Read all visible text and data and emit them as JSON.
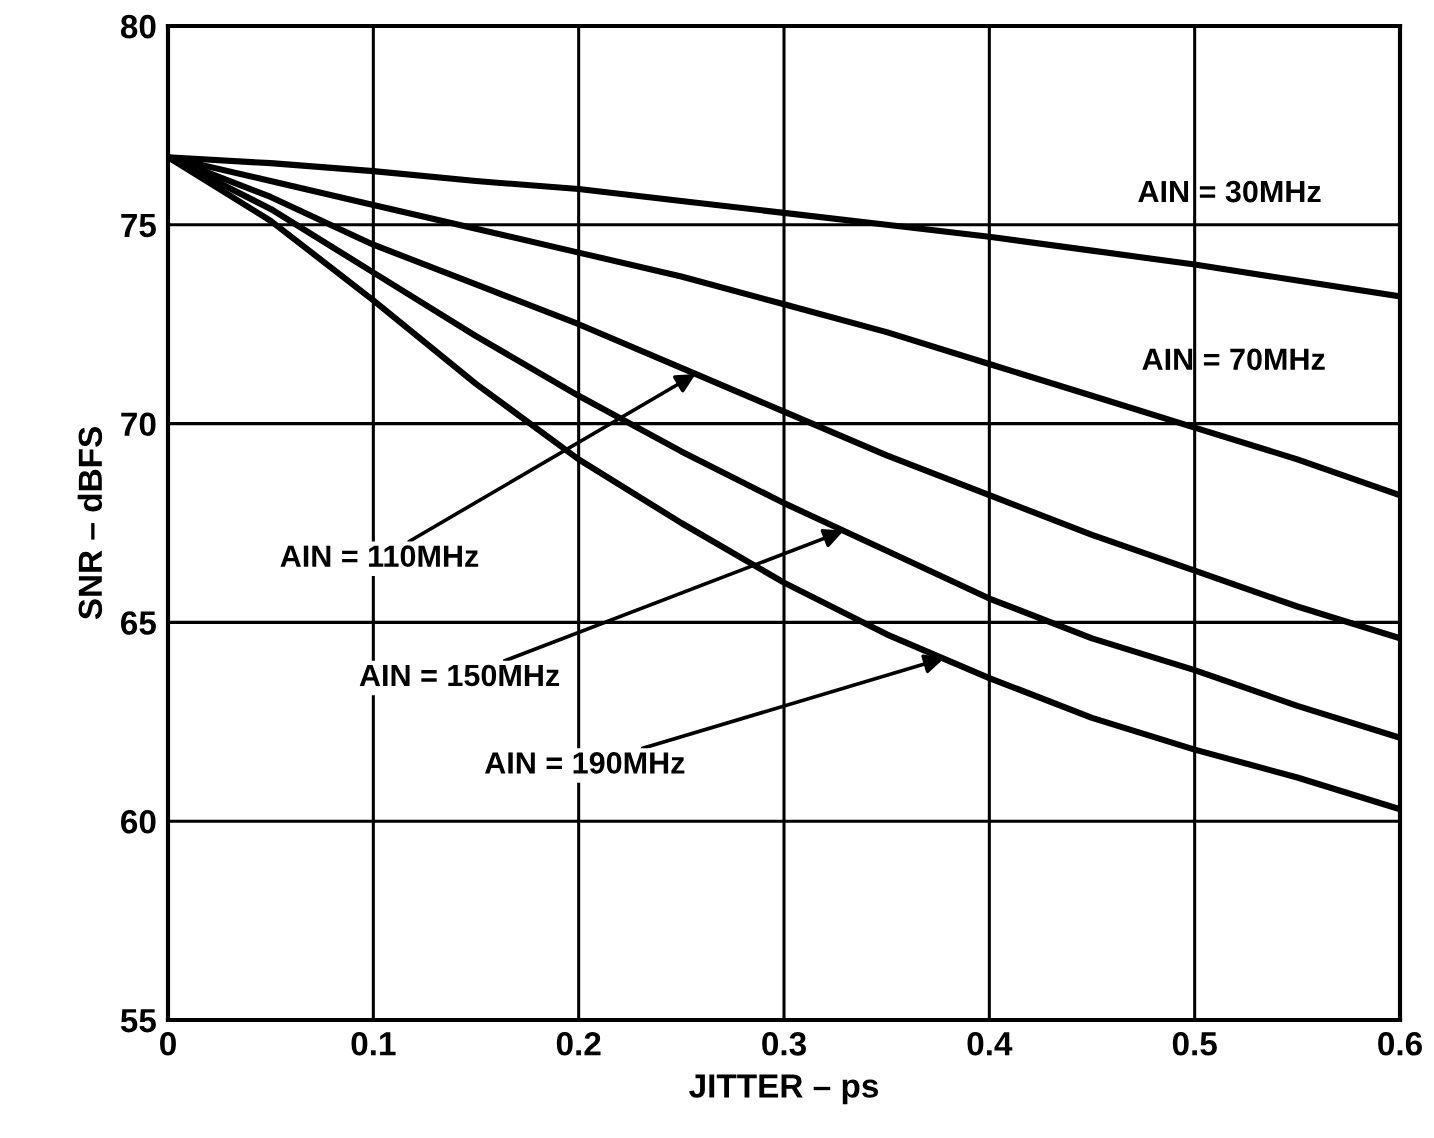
{
  "chart_data": {
    "type": "line",
    "xlabel": "JITTER – ps",
    "ylabel": "SNR – dBFS",
    "x": [
      0,
      0.05,
      0.1,
      0.15,
      0.2,
      0.25,
      0.3,
      0.35,
      0.4,
      0.45,
      0.5,
      0.55,
      0.6
    ],
    "series": [
      {
        "name": "AIN = 30MHz",
        "color": "#000000",
        "values": [
          76.7,
          76.55,
          76.35,
          76.1,
          75.9,
          75.6,
          75.3,
          75.0,
          74.7,
          74.35,
          74.0,
          73.6,
          73.2
        ]
      },
      {
        "name": "AIN = 70MHz",
        "color": "#000000",
        "values": [
          76.7,
          76.1,
          75.5,
          74.9,
          74.3,
          73.7,
          73.0,
          72.3,
          71.5,
          70.7,
          69.9,
          69.1,
          68.2
        ]
      },
      {
        "color": "#000000",
        "values": [
          76.7,
          75.7,
          74.5,
          73.5,
          72.5,
          71.4,
          70.3,
          69.2,
          68.2,
          67.2,
          66.3,
          65.4,
          64.6
        ]
      },
      {
        "color": "#000000",
        "values": [
          76.7,
          75.4,
          73.8,
          72.2,
          70.7,
          69.3,
          68.0,
          66.8,
          65.6,
          64.6,
          63.8,
          62.9,
          62.1
        ]
      },
      {
        "color": "#000000",
        "values": [
          76.7,
          75.1,
          73.1,
          71.0,
          69.1,
          67.5,
          66.0,
          64.7,
          63.6,
          62.6,
          61.8,
          61.1,
          60.3
        ]
      }
    ],
    "annotations": [
      {
        "text": "AIN = 110MHz",
        "x": 0.257,
        "y": 71.25
      },
      {
        "text": "AIN = 150MHz",
        "x": 0.329,
        "y": 67.3
      },
      {
        "text": "AIN = 190MHz",
        "x": 0.378,
        "y": 64.1
      }
    ],
    "xlim": [
      0,
      0.6
    ],
    "xticks": [
      0,
      0.1,
      0.2,
      0.3,
      0.4,
      0.5,
      0.6
    ],
    "ylim": [
      55,
      80
    ],
    "yticks": [
      55,
      60,
      65,
      70,
      75,
      80
    ],
    "grid": true,
    "legend": false,
    "marker": "none",
    "line_style": "solid"
  }
}
